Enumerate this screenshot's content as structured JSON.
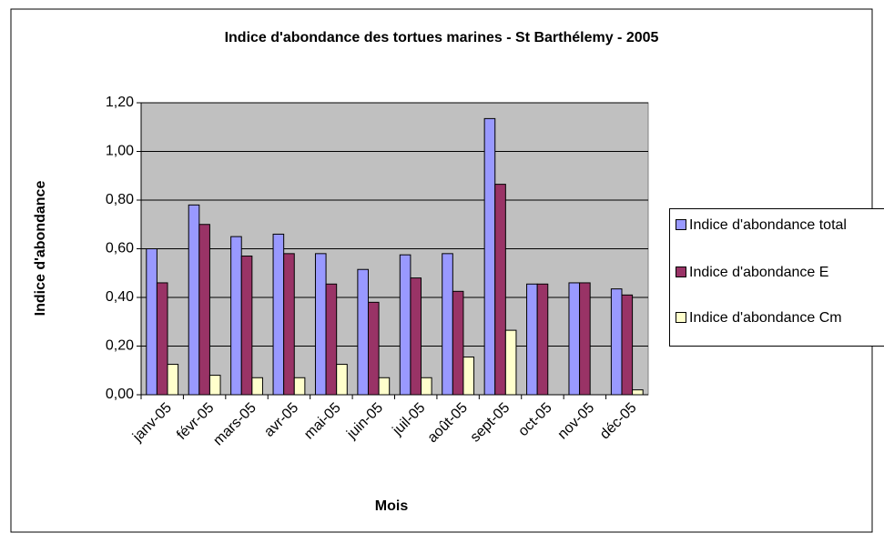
{
  "chart_data": {
    "type": "bar",
    "title": "Indice d'abondance des tortues marines - St Barthélemy - 2005",
    "x_label": "Mois",
    "y_label": "Indice d'abondance",
    "categories": [
      "janv-05",
      "févr-05",
      "mars-05",
      "avr-05",
      "mai-05",
      "juin-05",
      "juil-05",
      "août-05",
      "sept-05",
      "oct-05",
      "nov-05",
      "déc-05"
    ],
    "series": [
      {
        "name": "Indice d'abondance total",
        "color": "#9999ff",
        "values": [
          0.6,
          0.78,
          0.65,
          0.66,
          0.58,
          0.515,
          0.575,
          0.58,
          1.135,
          0.455,
          0.46,
          0.435
        ]
      },
      {
        "name": "Indice d'abondance E",
        "color": "#993366",
        "values": [
          0.46,
          0.7,
          0.57,
          0.58,
          0.455,
          0.38,
          0.48,
          0.425,
          0.865,
          0.455,
          0.46,
          0.41
        ]
      },
      {
        "name": "Indice d'abondance Cm",
        "color": "#ffffcc",
        "values": [
          0.125,
          0.08,
          0.07,
          0.07,
          0.125,
          0.07,
          0.07,
          0.155,
          0.265,
          0,
          0,
          0.02
        ]
      }
    ],
    "ylim": [
      0,
      1.2
    ],
    "yticks": [
      {
        "value": 0,
        "label": "0,00"
      },
      {
        "value": 0.2,
        "label": "0,20"
      },
      {
        "value": 0.4,
        "label": "0,40"
      },
      {
        "value": 0.6,
        "label": "0,60"
      },
      {
        "value": 0.8,
        "label": "0,80"
      },
      {
        "value": 1.0,
        "label": "1,00"
      },
      {
        "value": 1.2,
        "label": "1,20"
      }
    ],
    "grid": true,
    "legend": "right"
  }
}
